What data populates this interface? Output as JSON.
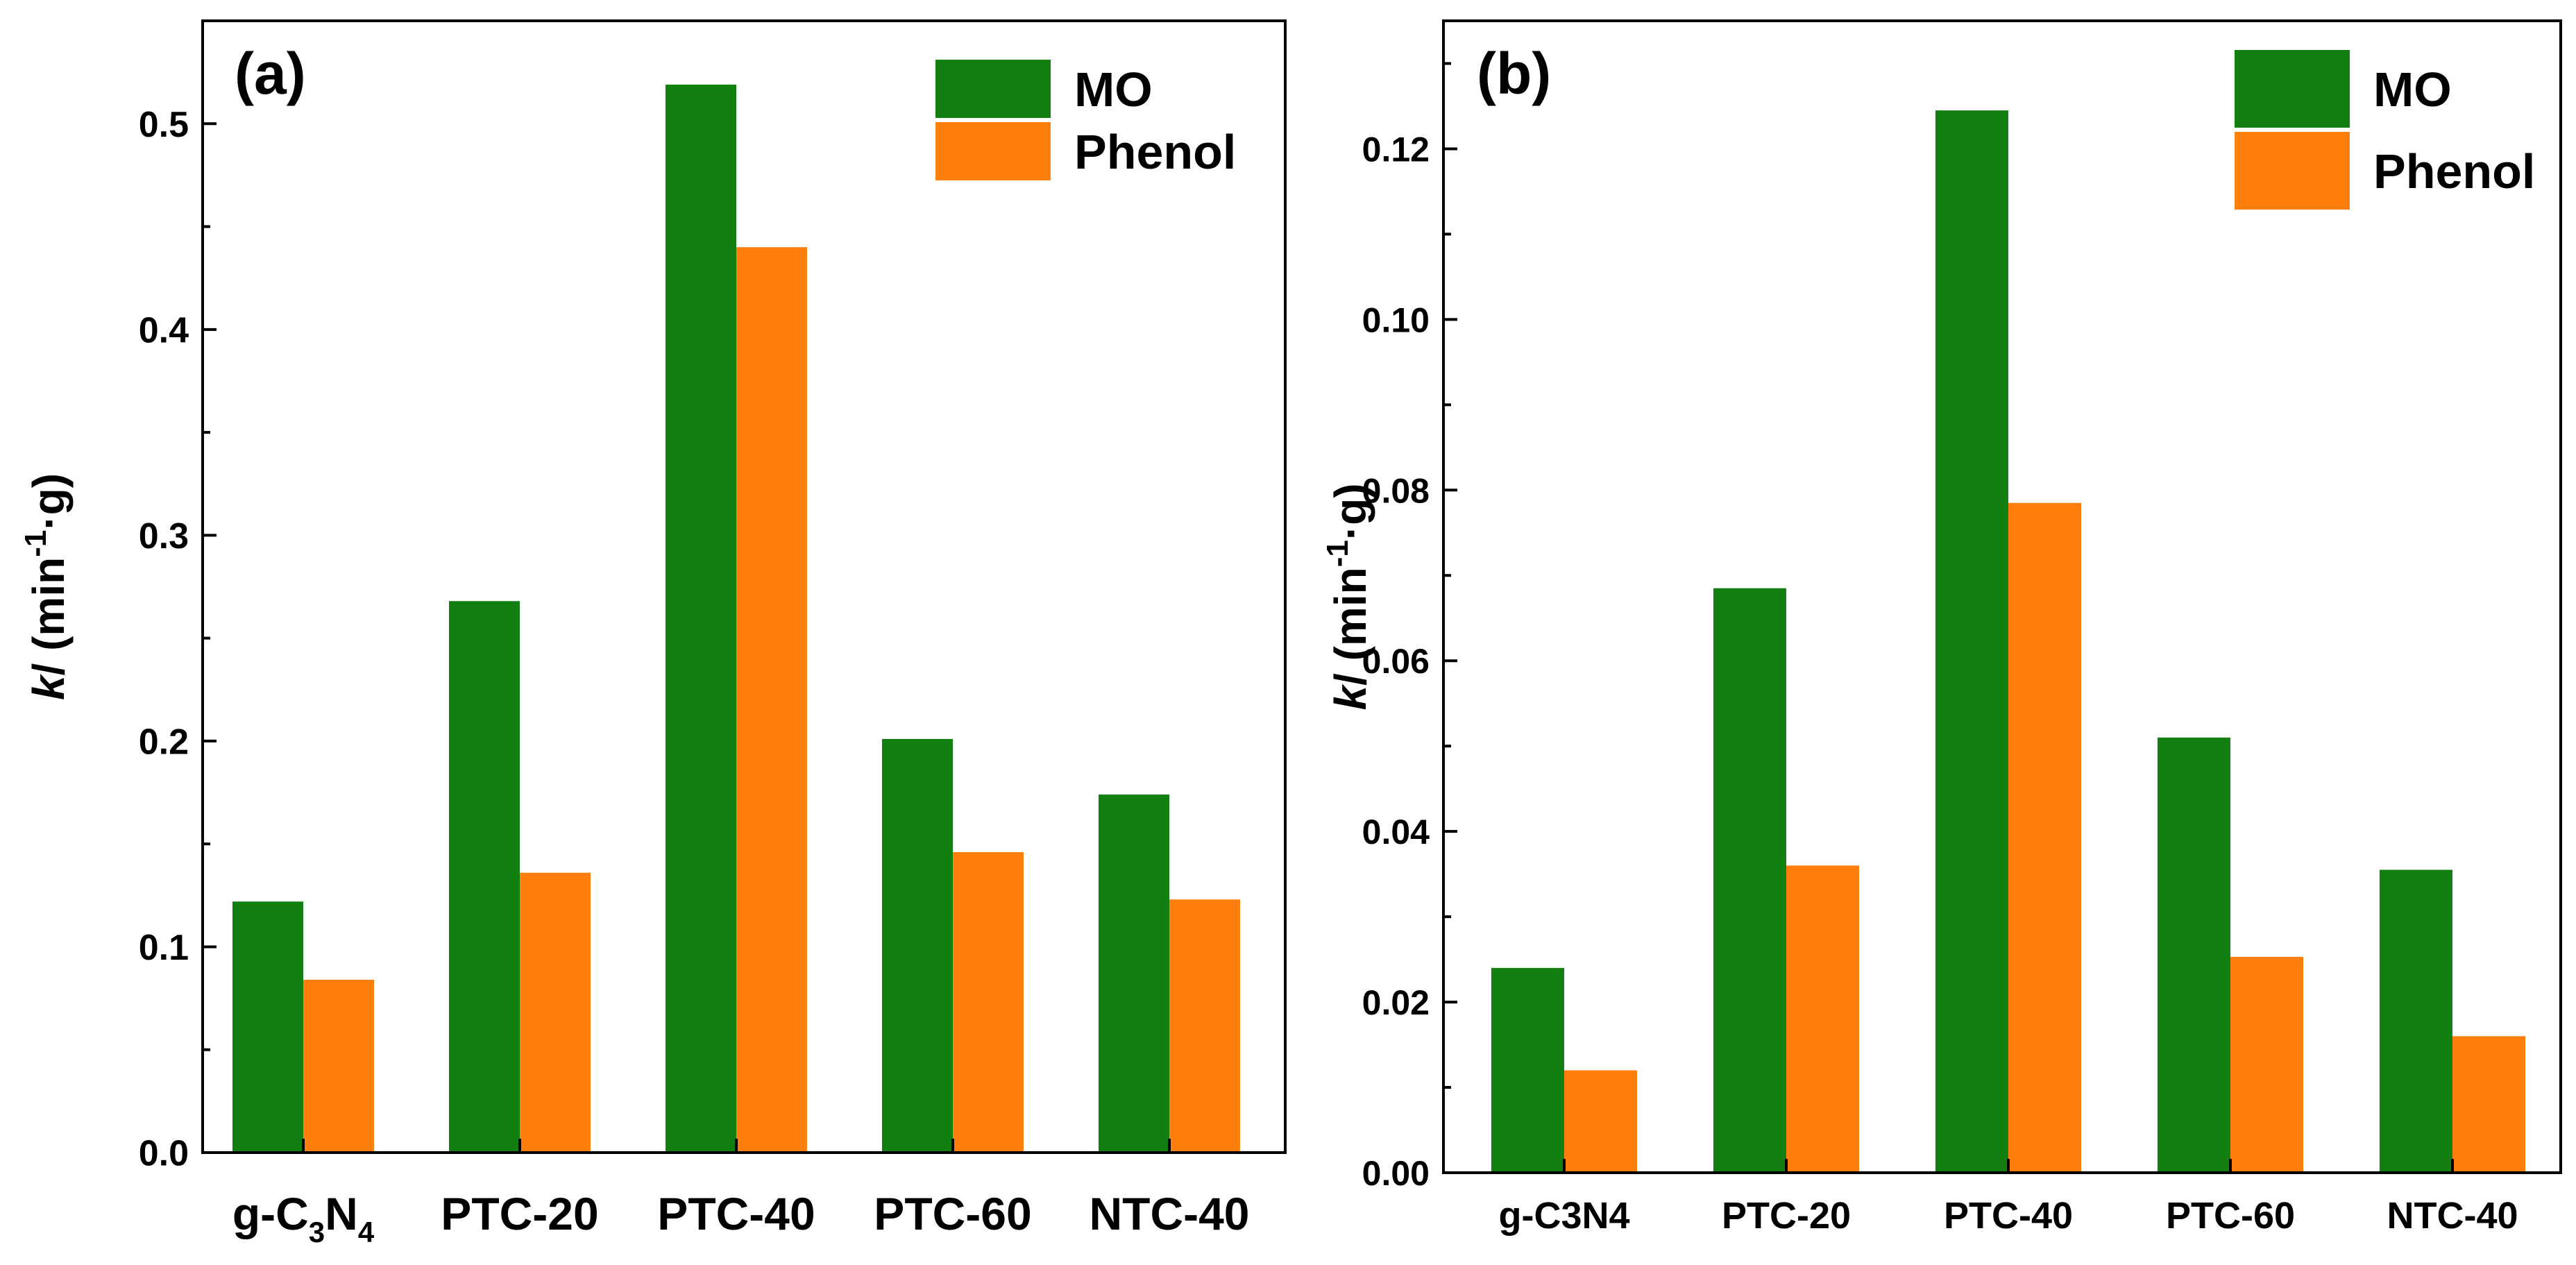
{
  "colors": {
    "mo": "#118011",
    "phenol": "#ff7f0e"
  },
  "chart_data": [
    {
      "type": "bar",
      "panel": "(a)",
      "categories": [
        "g-C3N4",
        "PTC-20",
        "PTC-40",
        "PTC-60",
        "NTC-40"
      ],
      "category_labels": [
        {
          "base": "g-C",
          "sub1": "3",
          "mid": "N",
          "sub2": "4"
        },
        {
          "text": "PTC-20"
        },
        {
          "text": "PTC-40"
        },
        {
          "text": "PTC-60"
        },
        {
          "text": "NTC-40"
        }
      ],
      "series": [
        {
          "name": "MO",
          "values": [
            0.122,
            0.268,
            0.519,
            0.201,
            0.174
          ]
        },
        {
          "name": "Phenol",
          "values": [
            0.084,
            0.136,
            0.44,
            0.146,
            0.123
          ]
        }
      ],
      "ylabel": {
        "k": "k",
        "slash": "/ (min",
        "sup": "-1",
        "unit": "·g)"
      },
      "ylim": [
        0,
        0.55
      ],
      "yticks": [
        0.0,
        0.1,
        0.2,
        0.3,
        0.4,
        0.5
      ],
      "ytick_labels": [
        "0.0",
        "0.1",
        "0.2",
        "0.3",
        "0.4",
        "0.5"
      ],
      "legend_position": "top-right"
    },
    {
      "type": "bar",
      "panel": "(b)",
      "categories": [
        "g-C3N4",
        "PTC-20",
        "PTC-40",
        "PTC-60",
        "NTC-40"
      ],
      "category_labels": [
        {
          "text": "g-C3N4"
        },
        {
          "text": "PTC-20"
        },
        {
          "text": "PTC-40"
        },
        {
          "text": "PTC-60"
        },
        {
          "text": "NTC-40"
        }
      ],
      "series": [
        {
          "name": "MO",
          "values": [
            0.024,
            0.0685,
            0.1245,
            0.051,
            0.0355
          ]
        },
        {
          "name": "Phenol",
          "values": [
            0.012,
            0.036,
            0.0785,
            0.0253,
            0.016
          ]
        }
      ],
      "ylabel": {
        "k": "k",
        "slash": "/ (min",
        "sup": "-1",
        "unit": "·g)"
      },
      "ylim": [
        0,
        0.135
      ],
      "yticks": [
        0.0,
        0.02,
        0.04,
        0.06,
        0.08,
        0.1,
        0.12
      ],
      "ytick_labels": [
        "0.00",
        "0.02",
        "0.04",
        "0.06",
        "0.08",
        "0.10",
        "0.12"
      ],
      "legend_position": "top-right"
    }
  ]
}
